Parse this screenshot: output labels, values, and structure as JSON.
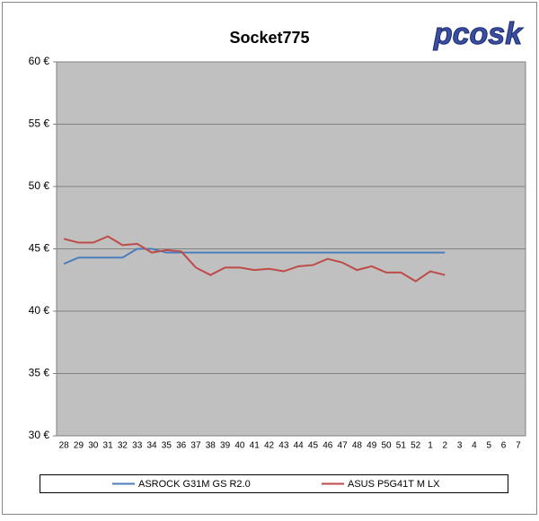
{
  "chart_data": {
    "type": "line",
    "title": "Socket775",
    "logo": "pcosk",
    "categories": [
      "28",
      "29",
      "30",
      "31",
      "32",
      "33",
      "34",
      "35",
      "36",
      "37",
      "38",
      "39",
      "40",
      "41",
      "42",
      "43",
      "44",
      "45",
      "46",
      "47",
      "48",
      "49",
      "50",
      "51",
      "52",
      "1",
      "2",
      "3",
      "4",
      "5",
      "6",
      "7"
    ],
    "series": [
      {
        "name": "ASROCK G31M GS R2.0",
        "color": "#4a7ebb",
        "values": [
          43.8,
          44.3,
          44.3,
          44.3,
          44.3,
          45.0,
          45.0,
          44.7,
          44.7,
          44.7,
          44.7,
          44.7,
          44.7,
          44.7,
          44.7,
          44.7,
          44.7,
          44.7,
          44.7,
          44.7,
          44.7,
          44.7,
          44.7,
          44.7,
          44.7,
          44.7,
          44.7,
          null,
          null,
          null,
          null,
          null
        ]
      },
      {
        "name": "ASUS P5G41T M LX",
        "color": "#be4b48",
        "values": [
          45.8,
          45.5,
          45.5,
          46.0,
          45.3,
          45.4,
          44.7,
          44.9,
          44.8,
          43.5,
          42.9,
          43.5,
          43.5,
          43.3,
          43.4,
          43.2,
          43.6,
          43.7,
          44.2,
          43.9,
          43.3,
          43.6,
          43.1,
          43.1,
          42.4,
          43.2,
          42.9,
          null,
          null,
          null,
          null,
          null
        ]
      }
    ],
    "ylim": [
      30,
      60
    ],
    "yticks": [
      {
        "value": 30,
        "label": "30 €"
      },
      {
        "value": 35,
        "label": "35 €"
      },
      {
        "value": 40,
        "label": "40 €"
      },
      {
        "value": 45,
        "label": "45 €"
      },
      {
        "value": 50,
        "label": "50 €"
      },
      {
        "value": 55,
        "label": "55 €"
      },
      {
        "value": 60,
        "label": "60 €"
      }
    ],
    "grid": true
  }
}
